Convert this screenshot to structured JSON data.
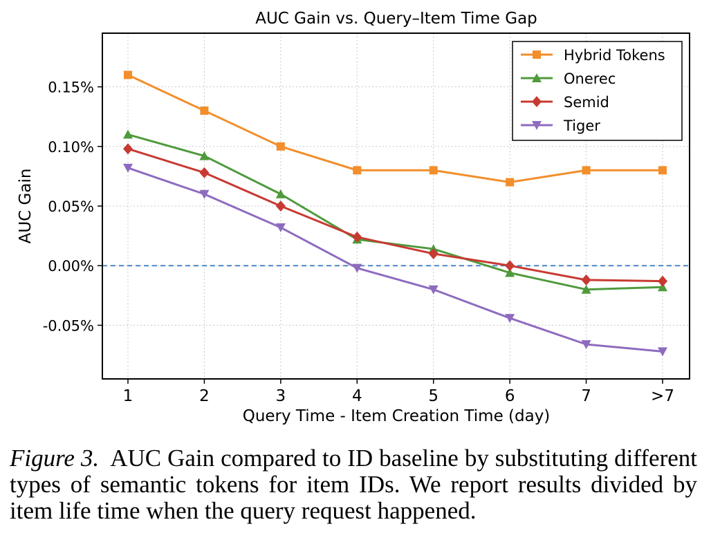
{
  "chart_data": {
    "type": "line",
    "title": "AUC Gain vs. Query–Item Time Gap",
    "xlabel": "Query Time - Item Creation Time (day)",
    "ylabel": "AUC Gain",
    "categories": [
      "1",
      "2",
      "3",
      "4",
      "5",
      "6",
      "7",
      ">7"
    ],
    "ylim": [
      -0.00095,
      0.00195
    ],
    "yticks": [
      -0.0005,
      0.0,
      0.0005,
      0.001,
      0.0015
    ],
    "ytick_labels": [
      "-0.05%",
      "0.00%",
      "0.05%",
      "0.10%",
      "0.15%"
    ],
    "grid": true,
    "legend_position": "top-right",
    "baseline": {
      "y": 0.0,
      "style": "dashed",
      "color": "#4a86c5"
    },
    "series": [
      {
        "name": "Hybrid Tokens",
        "color": "#f28e2b",
        "marker": "square",
        "values": [
          0.0016,
          0.0013,
          0.001,
          0.0008,
          0.0008,
          0.0007,
          0.0008,
          0.0008
        ]
      },
      {
        "name": "Onerec",
        "color": "#4f9a3c",
        "marker": "triangle-up",
        "values": [
          0.0011,
          0.00092,
          0.0006,
          0.00022,
          0.00014,
          -6e-05,
          -0.0002,
          -0.00018
        ]
      },
      {
        "name": "Semid",
        "color": "#c73a32",
        "marker": "diamond",
        "values": [
          0.00098,
          0.00078,
          0.0005,
          0.00024,
          0.0001,
          0.0,
          -0.00012,
          -0.00013
        ]
      },
      {
        "name": "Tiger",
        "color": "#8e6bbf",
        "marker": "triangle-down",
        "values": [
          0.00082,
          0.0006,
          0.00032,
          -2e-05,
          -0.0002,
          -0.00044,
          -0.00066,
          -0.00072
        ]
      }
    ]
  },
  "caption": {
    "label": "Figure 3.",
    "text": "AUC Gain compared to ID baseline by substituting different types of semantic tokens for item IDs. We report results divided by item life time when the query request happened."
  }
}
